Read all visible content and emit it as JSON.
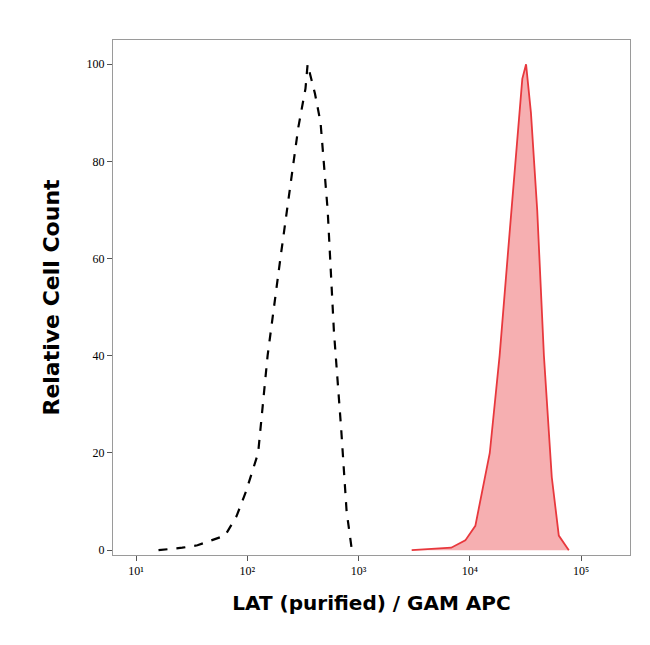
{
  "chart_data": {
    "type": "histogram_overlay",
    "x_label": "LAT (purified) / GAM APC",
    "y_label": "Relative Cell Count",
    "log": "x",
    "grid": false,
    "xlim": [
      6.2,
      275000
    ],
    "ylim": [
      -1,
      105
    ],
    "xticks": [
      {
        "value": 10,
        "label": "10¹"
      },
      {
        "value": 100,
        "label": "10²"
      },
      {
        "value": 1000,
        "label": "10³"
      },
      {
        "value": 10000,
        "label": "10⁴"
      },
      {
        "value": 100000,
        "label": "10⁵"
      }
    ],
    "yticks": [
      0,
      20,
      40,
      60,
      80,
      100
    ],
    "series": [
      {
        "color": "#000000",
        "line_style": "dashed",
        "type": "line",
        "x": [
          15.9,
          26,
          35.6,
          47.6,
          63,
          80,
          97,
          125,
          152,
          198,
          243,
          287,
          333,
          348,
          405,
          455,
          527,
          600,
          697,
          780,
          870
        ],
        "values": [
          0,
          0.5,
          1,
          2,
          3,
          7,
          12,
          20,
          40,
          60,
          75,
          87,
          95,
          100,
          94,
          88,
          70,
          45,
          25,
          8,
          0
        ]
      },
      {
        "color": "#e8383d",
        "line_style": "solid",
        "type": "area",
        "x": [
          3000,
          6800,
          9100,
          11200,
          15100,
          18500,
          22700,
          26900,
          29600,
          32000,
          35400,
          40300,
          46300,
          54500,
          63000,
          77500
        ],
        "values": [
          0,
          0.5,
          2,
          5,
          20,
          40,
          65,
          85,
          97,
          100,
          90,
          70,
          40,
          15,
          3,
          0
        ]
      }
    ]
  }
}
